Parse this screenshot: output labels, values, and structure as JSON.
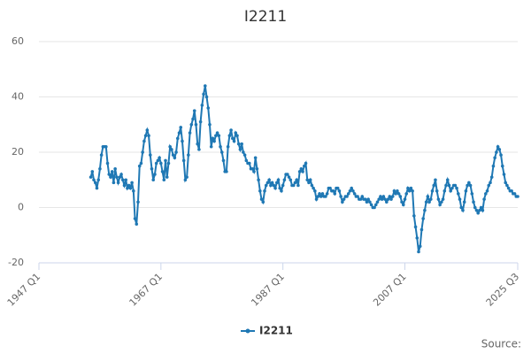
{
  "chart_data": {
    "type": "line",
    "title": "I2211",
    "categories": [
      "1947 Q1",
      null,
      null,
      null,
      null,
      null,
      null,
      null,
      null,
      null,
      null,
      null,
      null,
      null,
      null,
      null,
      null,
      null,
      null,
      null,
      null,
      null,
      null,
      null,
      null,
      null,
      null,
      null,
      null,
      null,
      null,
      null,
      null,
      null,
      null,
      null,
      null,
      null,
      null,
      null,
      null,
      null,
      null,
      null,
      null,
      null,
      null,
      null,
      null,
      null,
      null,
      null,
      null,
      null,
      null,
      null,
      null,
      null,
      null,
      null,
      null,
      null,
      null,
      null,
      null,
      null,
      null,
      null,
      null,
      null,
      null,
      null,
      null,
      null,
      null,
      null,
      null,
      null,
      null,
      null,
      "1967 Q1",
      null,
      null,
      null,
      null,
      null,
      null,
      null,
      null,
      null,
      null,
      null,
      null,
      null,
      null,
      null,
      null,
      null,
      null,
      null,
      null,
      null,
      null,
      null,
      null,
      null,
      null,
      null,
      null,
      null,
      null,
      null,
      null,
      null,
      null,
      null,
      null,
      null,
      null,
      null,
      null,
      null,
      null,
      null,
      null,
      null,
      null,
      null,
      null,
      null,
      null,
      null,
      null,
      null,
      null,
      null,
      null,
      null,
      null,
      null,
      null,
      null,
      null,
      null,
      null,
      null,
      null,
      null,
      null,
      null,
      null,
      null,
      null,
      null,
      null,
      null,
      null,
      null,
      null,
      null,
      "1987 Q1",
      null,
      null,
      null,
      null,
      null,
      null,
      null,
      null,
      null,
      null,
      null,
      null,
      null,
      null,
      null,
      null,
      null,
      null,
      null,
      null,
      null,
      null,
      null,
      null,
      null,
      null,
      null,
      null,
      null,
      null,
      null,
      null,
      null,
      null,
      null,
      null,
      null,
      null,
      null,
      null,
      null,
      null,
      null,
      null,
      null,
      null,
      null,
      null,
      null,
      null,
      null,
      null,
      null,
      null,
      null,
      null,
      null,
      null,
      null,
      null,
      null,
      null,
      null,
      null,
      null,
      null,
      null,
      null,
      null,
      null,
      null,
      null,
      null,
      null,
      null,
      null,
      null,
      null,
      null,
      "2007 Q1",
      null,
      null,
      null,
      null,
      null,
      null,
      null,
      null,
      null,
      null,
      null,
      null,
      null,
      null,
      null,
      null,
      null,
      null,
      null,
      null,
      null,
      null,
      null,
      null,
      null,
      null,
      null,
      null,
      null,
      null,
      null,
      null,
      null,
      null,
      null,
      null,
      null,
      null,
      null,
      null,
      null,
      null,
      null,
      null,
      null,
      null,
      null,
      null,
      null,
      null,
      null,
      null,
      null,
      null,
      null,
      null,
      null,
      null,
      null,
      null,
      null,
      null,
      null,
      null,
      null,
      null,
      null,
      null,
      null,
      null,
      null,
      null,
      null,
      "2025 Q3"
    ],
    "series": [
      {
        "name": "I2211",
        "color": "#1f78b4",
        "values": [
          null,
          null,
          null,
          null,
          null,
          null,
          null,
          null,
          null,
          null,
          null,
          null,
          null,
          null,
          null,
          null,
          null,
          null,
          null,
          null,
          null,
          null,
          null,
          null,
          null,
          null,
          null,
          null,
          null,
          null,
          null,
          null,
          null,
          null,
          11,
          13,
          10,
          9,
          7,
          10,
          14,
          19,
          22,
          22,
          22,
          16,
          12,
          11,
          13,
          9,
          14,
          11,
          9,
          11,
          12,
          10,
          8,
          10,
          7,
          8,
          7,
          9,
          6,
          -4,
          -6,
          2,
          15,
          16,
          20,
          24,
          26,
          28,
          26,
          19,
          14,
          10,
          12,
          16,
          17,
          18,
          16,
          13,
          10,
          17,
          11,
          16,
          22,
          21,
          19,
          18,
          20,
          25,
          27,
          29,
          24,
          17,
          10,
          11,
          19,
          27,
          30,
          32,
          35,
          30,
          23,
          21,
          31,
          37,
          41,
          44,
          40,
          36,
          30,
          22,
          25,
          24,
          26,
          27,
          26,
          22,
          20,
          17,
          13,
          13,
          22,
          26,
          28,
          25,
          24,
          27,
          26,
          23,
          21,
          23,
          20,
          19,
          17,
          16,
          16,
          14,
          14,
          13,
          18,
          14,
          10,
          6,
          3,
          2,
          6,
          8,
          9,
          10,
          8,
          9,
          8,
          7,
          9,
          10,
          7,
          6,
          8,
          10,
          12,
          12,
          11,
          10,
          8,
          8,
          9,
          10,
          8,
          13,
          14,
          13,
          15,
          16,
          10,
          9,
          10,
          8,
          7,
          6,
          3,
          4,
          5,
          4,
          5,
          4,
          4,
          5,
          7,
          7,
          6,
          6,
          5,
          7,
          7,
          6,
          4,
          2,
          3,
          4,
          4,
          5,
          6,
          7,
          6,
          5,
          4,
          4,
          3,
          3,
          4,
          3,
          3,
          2,
          3,
          2,
          1,
          0,
          0,
          1,
          2,
          3,
          4,
          3,
          4,
          3,
          2,
          3,
          4,
          3,
          4,
          6,
          5,
          6,
          5,
          4,
          2,
          1,
          3,
          5,
          7,
          6,
          7,
          6,
          -3,
          -7,
          -11,
          -16,
          -14,
          -8,
          -4,
          -1,
          2,
          4,
          2,
          3,
          6,
          8,
          10,
          6,
          3,
          1,
          2,
          3,
          6,
          8,
          10,
          8,
          6,
          7,
          8,
          8,
          7,
          5,
          3,
          0,
          -1,
          2,
          6,
          8,
          9,
          8,
          5,
          2,
          0,
          -1,
          -2,
          -1,
          0,
          -1,
          3,
          5,
          6,
          8,
          9,
          11,
          15,
          18,
          20,
          22,
          21,
          19,
          15,
          12,
          9,
          8,
          7,
          6,
          6,
          5,
          5,
          4,
          4
        ]
      }
    ],
    "ylim": [
      -20,
      60
    ],
    "yticks": [
      -20,
      0,
      20,
      40,
      60
    ],
    "grid": true,
    "legend": "bottom",
    "credits": "Source:"
  }
}
